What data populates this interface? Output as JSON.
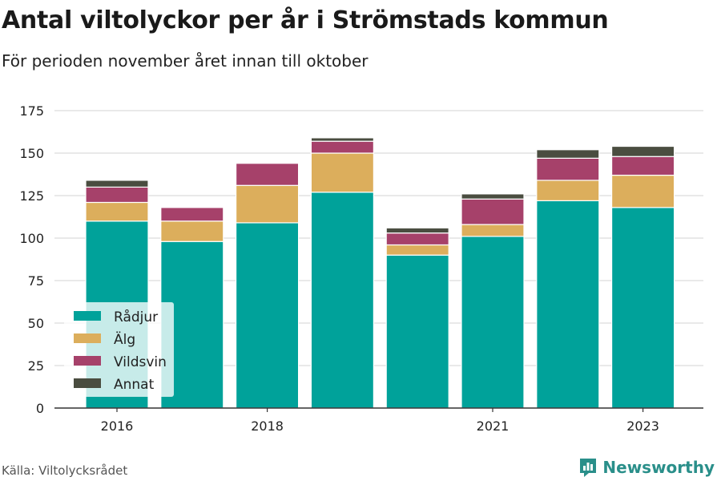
{
  "title": "Antal viltolyckor per år i Strömstads kommun",
  "subtitle": "För perioden november året innan till oktober",
  "source": "Källa: Viltolycksrådet",
  "brand": "Newsworthy",
  "colors": {
    "Rådjur": "#00a29a",
    "Älg": "#dcae5c",
    "Vildsvin": "#a6416a",
    "Annat": "#4a4d40",
    "grid": "#dcdcdc",
    "axis": "#333333",
    "brand": "#2a8f8a"
  },
  "chart_data": {
    "type": "bar",
    "stacked": true,
    "categories": [
      "2016",
      "2017",
      "2018",
      "2019",
      "2020",
      "2021",
      "2022",
      "2023"
    ],
    "x_tick_labels": [
      "2016",
      "",
      "2018",
      "",
      "",
      "2021",
      "",
      "2023"
    ],
    "series": [
      {
        "name": "Rådjur",
        "values": [
          110,
          98,
          109,
          127,
          90,
          101,
          122,
          118
        ]
      },
      {
        "name": "Älg",
        "values": [
          11,
          12,
          22,
          23,
          6,
          7,
          12,
          19
        ]
      },
      {
        "name": "Vildsvin",
        "values": [
          9,
          8,
          13,
          7,
          7,
          15,
          13,
          11
        ]
      },
      {
        "name": "Annat",
        "values": [
          4,
          0,
          0,
          2,
          3,
          3,
          5,
          6
        ]
      }
    ],
    "ylim": [
      0,
      175
    ],
    "yticks": [
      0,
      25,
      50,
      75,
      100,
      125,
      150,
      175
    ],
    "grid": true,
    "legend": {
      "position": "bottom-left",
      "entries": [
        "Rådjur",
        "Älg",
        "Vildsvin",
        "Annat"
      ]
    }
  }
}
